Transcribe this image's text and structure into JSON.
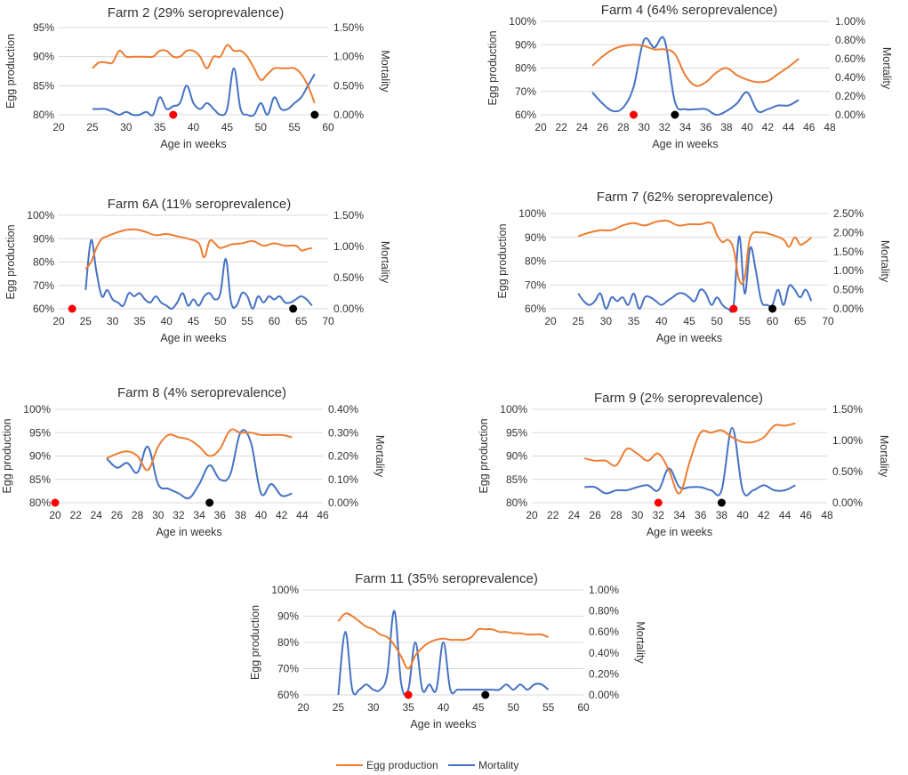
{
  "colors": {
    "egg": "#ED7D31",
    "mortality": "#4472C4",
    "marker_red": "#FF0000",
    "marker_black": "#000000",
    "gridline": "#D9D9D9",
    "text": "#333333"
  },
  "legend": {
    "egg_label": "Egg production",
    "mortality_label": "Mortality"
  },
  "chart_data": [
    {
      "id": "farm2",
      "type": "line",
      "title": "Farm 2 (29% seroprevalence)",
      "xlabel": "Age  in weeks",
      "ylabel": "Egg  production",
      "y2label": "Mortality",
      "xlim": [
        20,
        60
      ],
      "xticks": [
        "20",
        "25",
        "30",
        "35",
        "40",
        "45",
        "50",
        "55",
        "60"
      ],
      "ylim": [
        80,
        95
      ],
      "yticks": [
        "80%",
        "85%",
        "90%",
        "95%"
      ],
      "y2lim": [
        0,
        1.5
      ],
      "y2ticks": [
        "0.00%",
        "0.50%",
        "1.00%",
        "1.50%"
      ],
      "egg": {
        "x": [
          25,
          26,
          27,
          28,
          29,
          30,
          31,
          32,
          33,
          34,
          35,
          36,
          37,
          38,
          39,
          40,
          41,
          42,
          43,
          44,
          45,
          46,
          47,
          48,
          49,
          50,
          51,
          52,
          53,
          54,
          55,
          56,
          57,
          58
        ],
        "y": [
          88,
          89,
          89,
          89,
          91,
          90,
          90,
          90,
          90,
          90,
          91,
          91,
          90,
          90,
          91,
          91,
          90,
          88,
          90,
          90,
          92,
          91,
          91,
          90,
          88,
          86,
          87,
          88,
          88,
          88,
          88,
          87,
          85,
          82
        ]
      },
      "mortality": {
        "x": [
          25,
          26,
          27,
          28,
          29,
          30,
          31,
          32,
          33,
          34,
          35,
          36,
          37,
          38,
          39,
          40,
          41,
          42,
          43,
          44,
          45,
          46,
          47,
          48,
          49,
          50,
          51,
          52,
          53,
          54,
          55,
          56,
          57,
          58
        ],
        "y": [
          0.1,
          0.1,
          0.1,
          0.05,
          0.0,
          0.05,
          0.0,
          0.0,
          0.05,
          0.0,
          0.3,
          0.1,
          0.15,
          0.2,
          0.5,
          0.2,
          0.1,
          0.2,
          0.1,
          0.0,
          0.1,
          0.8,
          0.1,
          0.0,
          0.0,
          0.2,
          0.0,
          0.3,
          0.1,
          0.1,
          0.2,
          0.3,
          0.5,
          0.7
        ]
      },
      "markers": [
        {
          "color": "red",
          "x": 37
        },
        {
          "color": "black",
          "x": 58
        }
      ]
    },
    {
      "id": "farm4",
      "type": "line",
      "title": "Farm 4 (64% seroprevalence)",
      "xlabel": "Age  in weeks",
      "ylabel": "Egg  production",
      "y2label": "Mortality",
      "xlim": [
        20,
        48
      ],
      "xticks": [
        "20",
        "22",
        "24",
        "26",
        "28",
        "30",
        "32",
        "34",
        "36",
        "38",
        "40",
        "42",
        "44",
        "46",
        "48"
      ],
      "ylim": [
        60,
        100
      ],
      "yticks": [
        "60%",
        "70%",
        "80%",
        "90%",
        "100%"
      ],
      "y2lim": [
        0,
        1.0
      ],
      "y2ticks": [
        "0.00%",
        "0.20%",
        "0.40%",
        "0.60%",
        "0.80%",
        "1.00%"
      ],
      "egg": {
        "x": [
          25,
          26,
          27,
          28,
          29,
          30,
          31,
          32,
          33,
          34,
          35,
          36,
          37,
          38,
          39,
          40,
          41,
          42,
          43,
          44,
          45
        ],
        "y": [
          81,
          85,
          88,
          89.5,
          90,
          89.5,
          88,
          88,
          86,
          77,
          72.5,
          74,
          78,
          80,
          77,
          75,
          74,
          74.5,
          77.5,
          80.5,
          84
        ]
      },
      "mortality": {
        "x": [
          25,
          26,
          27,
          28,
          29,
          30,
          31,
          32,
          33,
          34,
          35,
          36,
          37,
          38,
          39,
          40,
          41,
          42,
          43,
          44,
          45
        ],
        "y": [
          0.24,
          0.12,
          0.04,
          0.08,
          0.3,
          0.8,
          0.72,
          0.8,
          0.14,
          0.06,
          0.06,
          0.06,
          0.0,
          0.04,
          0.12,
          0.24,
          0.04,
          0.06,
          0.1,
          0.1,
          0.16
        ]
      },
      "markers": [
        {
          "color": "red",
          "x": 29
        },
        {
          "color": "black",
          "x": 33
        }
      ]
    },
    {
      "id": "farm6a",
      "type": "line",
      "title": "Farm 6A (11% seroprevalence)",
      "xlabel": "Age  in weeks",
      "ylabel": "Egg  production",
      "y2label": "Mortality",
      "xlim": [
        20,
        70
      ],
      "xticks": [
        "20",
        "25",
        "30",
        "35",
        "40",
        "45",
        "50",
        "55",
        "60",
        "65",
        "70"
      ],
      "ylim": [
        60,
        100
      ],
      "yticks": [
        "60%",
        "70%",
        "80%",
        "90%",
        "100%"
      ],
      "y2lim": [
        0,
        1.5
      ],
      "y2ticks": [
        "0.00%",
        "0.50%",
        "1.00%",
        "1.50%"
      ],
      "egg": {
        "x": [
          25,
          26,
          27,
          28,
          29,
          30,
          32,
          34,
          36,
          38,
          40,
          42,
          44,
          46,
          47,
          48,
          49,
          50,
          52,
          54,
          56,
          58,
          60,
          62,
          64,
          65,
          66,
          67
        ],
        "y": [
          77,
          80,
          86,
          90,
          91,
          92,
          93.5,
          94,
          93,
          91.5,
          92,
          91,
          90,
          88,
          82,
          89,
          88,
          86,
          87.5,
          88,
          89,
          87,
          88,
          87,
          87,
          85,
          85.5,
          86
        ]
      },
      "mortality": {
        "x": [
          25,
          26,
          27,
          28,
          29,
          30,
          31,
          32,
          33,
          34,
          35,
          36,
          37,
          38,
          39,
          40,
          41,
          42,
          43,
          44,
          45,
          46,
          47,
          48,
          49,
          50,
          51,
          52,
          53,
          54,
          55,
          56,
          57,
          58,
          59,
          60,
          61,
          62,
          63,
          64,
          65,
          66,
          67
        ],
        "y": [
          0.3,
          1.1,
          0.6,
          0.2,
          0.3,
          0.15,
          0.1,
          0.05,
          0.25,
          0.2,
          0.25,
          0.15,
          0.1,
          0.2,
          0.1,
          0.05,
          0.0,
          0.1,
          0.25,
          0.05,
          0.15,
          0.05,
          0.2,
          0.25,
          0.15,
          0.25,
          0.8,
          0.1,
          0.05,
          0.25,
          0.2,
          0.0,
          0.2,
          0.1,
          0.2,
          0.15,
          0.2,
          0.1,
          0.1,
          0.15,
          0.2,
          0.15,
          0.05
        ]
      },
      "markers": [
        {
          "color": "red",
          "x": 22.5
        },
        {
          "color": "black",
          "x": 63.5
        }
      ]
    },
    {
      "id": "farm7",
      "type": "line",
      "title": "Farm 7 (62% seroprevalence)",
      "xlabel": "Age  in weeks",
      "ylabel": "Egg  production",
      "y2label": "Mortality",
      "xlim": [
        20,
        70
      ],
      "xticks": [
        "20",
        "25",
        "30",
        "35",
        "40",
        "45",
        "50",
        "55",
        "60",
        "65",
        "70"
      ],
      "ylim": [
        60,
        100
      ],
      "yticks": [
        "60%",
        "70%",
        "80%",
        "90%",
        "100%"
      ],
      "y2lim": [
        0,
        2.5
      ],
      "y2ticks": [
        "0.00%",
        "0.50%",
        "1.00%",
        "1.50%",
        "2.00%",
        "2.50%"
      ],
      "egg": {
        "x": [
          25,
          27,
          29,
          31,
          33,
          35,
          37,
          39,
          41,
          43,
          45,
          47,
          49,
          50,
          51,
          52,
          53,
          54,
          55,
          56,
          58,
          60,
          62,
          63,
          64,
          65,
          66,
          67
        ],
        "y": [
          90.5,
          92,
          93,
          93,
          95,
          96,
          95,
          96.5,
          97,
          95,
          95.5,
          95.5,
          96,
          91,
          88,
          89,
          85,
          72,
          73,
          90,
          92,
          91,
          89,
          86,
          90,
          87,
          88,
          90
        ]
      },
      "mortality": {
        "x": [
          25,
          26,
          27,
          28,
          29,
          30,
          31,
          32,
          33,
          34,
          35,
          36,
          37,
          38,
          39,
          40,
          41,
          42,
          43,
          44,
          45,
          46,
          47,
          48,
          49,
          50,
          51,
          52,
          53,
          54,
          55,
          56,
          57,
          58,
          59,
          60,
          61,
          62,
          63,
          64,
          65,
          66,
          67
        ],
        "y": [
          0.4,
          0.2,
          0.1,
          0.2,
          0.4,
          0.0,
          0.3,
          0.2,
          0.3,
          0.1,
          0.4,
          0.0,
          0.3,
          0.3,
          0.2,
          0.1,
          0.2,
          0.3,
          0.4,
          0.4,
          0.3,
          0.2,
          0.5,
          0.4,
          0.1,
          0.3,
          0.1,
          0.0,
          0.1,
          1.9,
          0.4,
          1.6,
          1.0,
          0.2,
          0.1,
          0.1,
          0.5,
          0.1,
          0.6,
          0.5,
          0.3,
          0.5,
          0.2
        ]
      },
      "markers": [
        {
          "color": "red",
          "x": 53
        },
        {
          "color": "black",
          "x": 60
        }
      ]
    },
    {
      "id": "farm8",
      "type": "line",
      "title": "Farm 8 (4% seroprevalence)",
      "xlabel": "Age  in weeks",
      "ylabel": "Egg  production",
      "y2label": "Mortality",
      "xlim": [
        20,
        46
      ],
      "xticks": [
        "20",
        "22",
        "24",
        "26",
        "28",
        "30",
        "32",
        "34",
        "36",
        "38",
        "40",
        "42",
        "44",
        "46"
      ],
      "ylim": [
        80,
        100
      ],
      "yticks": [
        "80%",
        "85%",
        "90%",
        "95%",
        "100%"
      ],
      "y2lim": [
        0,
        0.4
      ],
      "y2ticks": [
        "0.00%",
        "0.10%",
        "0.20%",
        "0.30%",
        "0.40%"
      ],
      "egg": {
        "x": [
          25,
          26,
          27,
          28,
          29,
          30,
          31,
          32,
          33,
          34,
          35,
          36,
          37,
          38,
          39,
          40,
          41,
          42,
          43
        ],
        "y": [
          89.5,
          90.5,
          91,
          90,
          87,
          92,
          94.5,
          94,
          93.5,
          92,
          90,
          91.5,
          95.5,
          95,
          95,
          94.5,
          94.5,
          94.5,
          94
        ]
      },
      "mortality": {
        "x": [
          25,
          26,
          27,
          28,
          29,
          30,
          31,
          32,
          33,
          34,
          35,
          36,
          37,
          38,
          39,
          40,
          41,
          42,
          43
        ],
        "y": [
          0.19,
          0.15,
          0.17,
          0.13,
          0.24,
          0.08,
          0.06,
          0.04,
          0.02,
          0.08,
          0.16,
          0.1,
          0.12,
          0.3,
          0.26,
          0.04,
          0.08,
          0.03,
          0.04
        ]
      },
      "markers": [
        {
          "color": "red",
          "x": 20
        },
        {
          "color": "black",
          "x": 35
        }
      ]
    },
    {
      "id": "farm9",
      "type": "line",
      "title": "Farm 9 (2% seroprevalence)",
      "xlabel": "Age  in weeks",
      "ylabel": "Egg  production",
      "y2label": "Mortality",
      "xlim": [
        20,
        48
      ],
      "xticks": [
        "20",
        "22",
        "24",
        "26",
        "28",
        "30",
        "32",
        "34",
        "36",
        "38",
        "40",
        "42",
        "44",
        "46",
        "48"
      ],
      "ylim": [
        80,
        100
      ],
      "yticks": [
        "80%",
        "85%",
        "90%",
        "95%",
        "100%"
      ],
      "y2lim": [
        0,
        1.5
      ],
      "y2ticks": [
        "0.00%",
        "0.50%",
        "1.00%",
        "1.50%"
      ],
      "egg": {
        "x": [
          25,
          26,
          27,
          28,
          29,
          30,
          31,
          32,
          33,
          34,
          35,
          36,
          37,
          38,
          39,
          40,
          41,
          42,
          43,
          44,
          45
        ],
        "y": [
          89.5,
          89,
          89,
          88,
          91.5,
          90.5,
          89,
          90.5,
          87,
          82,
          89,
          95,
          95,
          95.5,
          94,
          93,
          93,
          94,
          96.5,
          96.5,
          97
        ]
      },
      "mortality": {
        "x": [
          25,
          26,
          27,
          28,
          29,
          30,
          31,
          32,
          33,
          34,
          35,
          36,
          37,
          38,
          39,
          40,
          41,
          42,
          43,
          44,
          45
        ],
        "y": [
          0.25,
          0.25,
          0.15,
          0.2,
          0.2,
          0.25,
          0.28,
          0.2,
          0.55,
          0.25,
          0.25,
          0.25,
          0.2,
          0.2,
          1.2,
          0.2,
          0.2,
          0.28,
          0.2,
          0.2,
          0.28
        ]
      },
      "markers": [
        {
          "color": "red",
          "x": 32
        },
        {
          "color": "black",
          "x": 38
        }
      ]
    },
    {
      "id": "farm11",
      "type": "line",
      "title": "Farm 11 (35% seroprevalence)",
      "xlabel": "Age  in weeks",
      "ylabel": "Egg  production",
      "y2label": "Mortality",
      "xlim": [
        20,
        60
      ],
      "xticks": [
        "20",
        "25",
        "30",
        "35",
        "40",
        "45",
        "50",
        "55",
        "60"
      ],
      "ylim": [
        60,
        100
      ],
      "yticks": [
        "60%",
        "70%",
        "80%",
        "90%",
        "100%"
      ],
      "y2lim": [
        0,
        1.0
      ],
      "y2ticks": [
        "0.00%",
        "0.20%",
        "0.40%",
        "0.60%",
        "0.80%",
        "1.00%"
      ],
      "egg": {
        "x": [
          25,
          26,
          27,
          28,
          29,
          30,
          31,
          32,
          33,
          34,
          35,
          36,
          37,
          38,
          39,
          40,
          41,
          42,
          43,
          44,
          45,
          46,
          47,
          48,
          49,
          50,
          51,
          52,
          53,
          54,
          55
        ],
        "y": [
          88,
          91,
          90,
          88,
          86,
          85,
          83,
          82,
          79,
          74.5,
          70,
          75,
          78,
          80,
          81,
          81.5,
          81,
          81,
          81,
          82,
          85,
          85,
          85,
          84,
          84,
          83.5,
          83.5,
          83,
          83,
          83,
          82
        ]
      },
      "mortality": {
        "x": [
          25,
          26,
          27,
          28,
          29,
          30,
          31,
          32,
          33,
          34,
          35,
          36,
          37,
          38,
          39,
          40,
          41,
          42,
          43,
          44,
          45,
          46,
          47,
          48,
          49,
          50,
          51,
          52,
          53,
          54,
          55
        ],
        "y": [
          0.0,
          0.6,
          0.05,
          0.05,
          0.1,
          0.05,
          0.05,
          0.2,
          0.8,
          0.1,
          0.05,
          0.5,
          0.05,
          0.1,
          0.05,
          0.5,
          0.05,
          0.05,
          0.05,
          0.05,
          0.05,
          0.05,
          0.05,
          0.05,
          0.1,
          0.05,
          0.1,
          0.05,
          0.1,
          0.1,
          0.05
        ]
      },
      "markers": [
        {
          "color": "red",
          "x": 35
        },
        {
          "color": "black",
          "x": 46
        }
      ]
    }
  ]
}
